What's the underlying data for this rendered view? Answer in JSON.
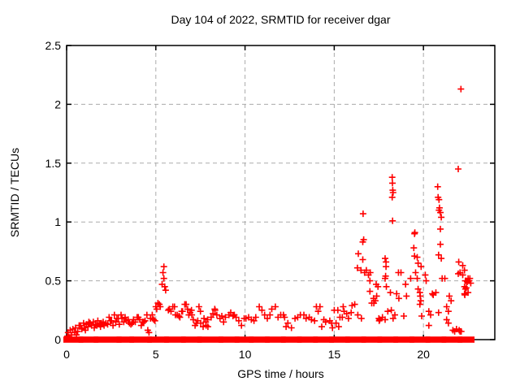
{
  "chart_data": {
    "type": "scatter",
    "title": "Day 104 of 2022, SRMTID for receiver dgar",
    "xlabel": "GPS time / hours",
    "ylabel": "SRMTID / TECUs",
    "xlim": [
      0,
      24
    ],
    "ylim": [
      0,
      2.5
    ],
    "xticks": [
      0,
      5,
      10,
      15,
      20
    ],
    "yticks": [
      0,
      0.5,
      1,
      1.5,
      2,
      2.5
    ],
    "grid": true,
    "legend_position": "none",
    "marker": "plus",
    "marker_color": "#ff0000",
    "grid_color": "#ababab",
    "frame_color": "#000000",
    "series_name": "SRMTID",
    "points": [
      [
        0.05,
        0.03
      ],
      [
        0.08,
        0.06
      ],
      [
        0.12,
        0.02
      ],
      [
        0.2,
        0.08
      ],
      [
        0.28,
        0.04
      ],
      [
        0.35,
        0.09
      ],
      [
        0.45,
        0.06
      ],
      [
        0.5,
        0.1
      ],
      [
        0.55,
        0.04
      ],
      [
        0.62,
        0.07
      ],
      [
        0.7,
        0.12
      ],
      [
        0.78,
        0.12
      ],
      [
        0.85,
        0.09
      ],
      [
        0.95,
        0.14
      ],
      [
        1.0,
        0.1
      ],
      [
        1.05,
        0.08
      ],
      [
        1.1,
        0.13
      ],
      [
        1.2,
        0.11
      ],
      [
        1.25,
        0.15
      ],
      [
        1.32,
        0.14
      ],
      [
        1.4,
        0.12
      ],
      [
        1.5,
        0.15
      ],
      [
        1.55,
        0.1
      ],
      [
        1.62,
        0.13
      ],
      [
        1.7,
        0.12
      ],
      [
        1.75,
        0.16
      ],
      [
        1.85,
        0.13
      ],
      [
        1.9,
        0.11
      ],
      [
        1.95,
        0.14
      ],
      [
        2.05,
        0.15
      ],
      [
        2.1,
        0.12
      ],
      [
        2.2,
        0.14
      ],
      [
        2.3,
        0.13
      ],
      [
        2.38,
        0.19
      ],
      [
        2.45,
        0.16
      ],
      [
        2.52,
        0.16
      ],
      [
        2.6,
        0.12
      ],
      [
        2.68,
        0.21
      ],
      [
        2.75,
        0.15
      ],
      [
        2.82,
        0.18
      ],
      [
        2.9,
        0.18
      ],
      [
        2.95,
        0.13
      ],
      [
        3.05,
        0.21
      ],
      [
        3.1,
        0.18
      ],
      [
        3.2,
        0.15
      ],
      [
        3.28,
        0.19
      ],
      [
        3.35,
        0.16
      ],
      [
        3.45,
        0.17
      ],
      [
        3.52,
        0.14
      ],
      [
        3.6,
        0.13
      ],
      [
        3.68,
        0.14
      ],
      [
        3.75,
        0.17
      ],
      [
        3.85,
        0.15
      ],
      [
        3.95,
        0.19
      ],
      [
        4.02,
        0.19
      ],
      [
        4.1,
        0.17
      ],
      [
        4.18,
        0.12
      ],
      [
        4.25,
        0.15
      ],
      [
        4.32,
        0.15
      ],
      [
        4.4,
        0.16
      ],
      [
        4.5,
        0.21
      ],
      [
        4.55,
        0.08
      ],
      [
        4.62,
        0.06
      ],
      [
        4.7,
        0.18
      ],
      [
        4.8,
        0.21
      ],
      [
        4.88,
        0.17
      ],
      [
        4.95,
        0.16
      ],
      [
        5.0,
        0.28
      ],
      [
        5.05,
        0.26
      ],
      [
        5.12,
        0.31
      ],
      [
        5.2,
        0.3
      ],
      [
        5.25,
        0.28
      ],
      [
        5.35,
        0.47
      ],
      [
        5.4,
        0.57
      ],
      [
        5.45,
        0.62
      ],
      [
        5.45,
        0.52
      ],
      [
        5.5,
        0.45
      ],
      [
        5.55,
        0.42
      ],
      [
        5.7,
        0.25
      ],
      [
        5.75,
        0.26
      ],
      [
        5.85,
        0.24
      ],
      [
        5.95,
        0.28
      ],
      [
        6.05,
        0.28
      ],
      [
        6.1,
        0.21
      ],
      [
        6.2,
        0.21
      ],
      [
        6.3,
        0.2
      ],
      [
        6.35,
        0.19
      ],
      [
        6.45,
        0.24
      ],
      [
        6.5,
        0.24
      ],
      [
        6.62,
        0.3
      ],
      [
        6.7,
        0.3
      ],
      [
        6.78,
        0.26
      ],
      [
        6.85,
        0.21
      ],
      [
        6.92,
        0.23
      ],
      [
        7.0,
        0.25
      ],
      [
        7.02,
        0.21
      ],
      [
        7.1,
        0.17
      ],
      [
        7.2,
        0.12
      ],
      [
        7.28,
        0.14
      ],
      [
        7.35,
        0.16
      ],
      [
        7.42,
        0.28
      ],
      [
        7.5,
        0.24
      ],
      [
        7.52,
        0.14
      ],
      [
        7.65,
        0.11
      ],
      [
        7.7,
        0.18
      ],
      [
        7.8,
        0.15
      ],
      [
        7.82,
        0.12
      ],
      [
        7.9,
        0.17
      ],
      [
        7.92,
        0.11
      ],
      [
        8.1,
        0.19
      ],
      [
        8.2,
        0.22
      ],
      [
        8.3,
        0.26
      ],
      [
        8.32,
        0.25
      ],
      [
        8.42,
        0.21
      ],
      [
        8.6,
        0.18
      ],
      [
        8.7,
        0.2
      ],
      [
        8.8,
        0.15
      ],
      [
        8.9,
        0.19
      ],
      [
        9.1,
        0.21
      ],
      [
        9.2,
        0.23
      ],
      [
        9.32,
        0.2
      ],
      [
        9.4,
        0.21
      ],
      [
        9.5,
        0.19
      ],
      [
        9.65,
        0.16
      ],
      [
        9.8,
        0.12
      ],
      [
        9.95,
        0.18
      ],
      [
        10.05,
        0.18
      ],
      [
        10.2,
        0.19
      ],
      [
        10.35,
        0.17
      ],
      [
        10.5,
        0.16
      ],
      [
        10.6,
        0.19
      ],
      [
        10.8,
        0.28
      ],
      [
        10.95,
        0.25
      ],
      [
        11.1,
        0.21
      ],
      [
        11.25,
        0.18
      ],
      [
        11.4,
        0.21
      ],
      [
        11.5,
        0.26
      ],
      [
        11.7,
        0.28
      ],
      [
        11.85,
        0.19
      ],
      [
        12.0,
        0.21
      ],
      [
        12.15,
        0.21
      ],
      [
        12.22,
        0.19
      ],
      [
        12.3,
        0.11
      ],
      [
        12.4,
        0.14
      ],
      [
        12.6,
        0.1
      ],
      [
        12.8,
        0.18
      ],
      [
        12.95,
        0.19
      ],
      [
        13.1,
        0.21
      ],
      [
        13.3,
        0.21
      ],
      [
        13.42,
        0.18
      ],
      [
        13.6,
        0.19
      ],
      [
        13.72,
        0.17
      ],
      [
        13.9,
        0.16
      ],
      [
        14.0,
        0.28
      ],
      [
        14.1,
        0.24
      ],
      [
        14.2,
        0.28
      ],
      [
        14.3,
        0.11
      ],
      [
        14.42,
        0.17
      ],
      [
        14.52,
        0.15
      ],
      [
        14.75,
        0.16
      ],
      [
        14.85,
        0.14
      ],
      [
        14.9,
        0.1
      ],
      [
        15.0,
        0.25
      ],
      [
        15.1,
        0.14
      ],
      [
        15.2,
        0.25
      ],
      [
        15.25,
        0.11
      ],
      [
        15.32,
        0.19
      ],
      [
        15.45,
        0.19
      ],
      [
        15.5,
        0.28
      ],
      [
        15.55,
        0.24
      ],
      [
        15.7,
        0.22
      ],
      [
        15.8,
        0.18
      ],
      [
        15.95,
        0.23
      ],
      [
        16.0,
        0.29
      ],
      [
        16.15,
        0.3
      ],
      [
        16.3,
        0.61
      ],
      [
        16.32,
        0.21
      ],
      [
        16.35,
        0.73
      ],
      [
        16.5,
        0.59
      ],
      [
        16.52,
        0.18
      ],
      [
        16.6,
        0.83
      ],
      [
        16.62,
        1.07
      ],
      [
        16.65,
        0.85
      ],
      [
        16.6,
        0.68
      ],
      [
        16.7,
        0.57
      ],
      [
        16.8,
        0.59
      ],
      [
        16.92,
        0.55
      ],
      [
        17.0,
        0.5
      ],
      [
        17.0,
        0.41
      ],
      [
        17.02,
        0.57
      ],
      [
        17.1,
        0.31
      ],
      [
        17.2,
        0.35
      ],
      [
        17.22,
        0.31
      ],
      [
        17.3,
        0.33
      ],
      [
        17.35,
        0.47
      ],
      [
        17.38,
        0.37
      ],
      [
        17.45,
        0.45
      ],
      [
        17.5,
        0.18
      ],
      [
        17.55,
        0.17
      ],
      [
        17.52,
        0.16
      ],
      [
        17.7,
        0.19
      ],
      [
        17.85,
        0.69
      ],
      [
        17.85,
        0.52
      ],
      [
        17.9,
        0.66
      ],
      [
        17.9,
        0.62
      ],
      [
        17.88,
        0.54
      ],
      [
        17.92,
        0.45
      ],
      [
        17.85,
        0.17
      ],
      [
        18.0,
        0.24
      ],
      [
        18.25,
        1.38
      ],
      [
        18.26,
        1.33
      ],
      [
        18.28,
        1.27
      ],
      [
        18.25,
        1.21
      ],
      [
        18.3,
        1.25
      ],
      [
        18.27,
        1.01
      ],
      [
        18.15,
        0.4
      ],
      [
        18.2,
        0.25
      ],
      [
        18.3,
        0.18
      ],
      [
        18.4,
        0.21
      ],
      [
        18.5,
        0.39
      ],
      [
        18.6,
        0.57
      ],
      [
        18.62,
        0.35
      ],
      [
        18.74,
        0.57
      ],
      [
        18.9,
        0.2
      ],
      [
        19.0,
        0.47
      ],
      [
        19.05,
        0.37
      ],
      [
        19.28,
        0.52
      ],
      [
        19.46,
        0.78
      ],
      [
        19.5,
        0.9
      ],
      [
        19.52,
        0.91
      ],
      [
        19.5,
        0.71
      ],
      [
        19.56,
        0.57
      ],
      [
        19.65,
        0.7
      ],
      [
        19.65,
        0.52
      ],
      [
        19.7,
        0.65
      ],
      [
        19.7,
        0.43
      ],
      [
        19.8,
        0.4
      ],
      [
        19.82,
        0.37
      ],
      [
        19.87,
        0.62
      ],
      [
        19.85,
        0.33
      ],
      [
        19.8,
        0.3
      ],
      [
        19.9,
        0.2
      ],
      [
        20.1,
        0.55
      ],
      [
        20.15,
        0.5
      ],
      [
        20.3,
        0.24
      ],
      [
        20.3,
        0.12
      ],
      [
        20.4,
        0.21
      ],
      [
        20.5,
        0.39
      ],
      [
        20.55,
        0.38
      ],
      [
        20.7,
        0.4
      ],
      [
        20.8,
        1.3
      ],
      [
        20.82,
        1.21
      ],
      [
        20.87,
        1.19
      ],
      [
        20.85,
        0.23
      ],
      [
        20.87,
        1.1
      ],
      [
        20.9,
        1.12
      ],
      [
        20.95,
        1.08
      ],
      [
        20.95,
        0.94
      ],
      [
        20.95,
        0.81
      ],
      [
        20.85,
        0.72
      ],
      [
        21.0,
        1.04
      ],
      [
        21.0,
        0.69
      ],
      [
        21.05,
        0.52
      ],
      [
        21.2,
        0.52
      ],
      [
        21.3,
        0.28
      ],
      [
        21.3,
        0.17
      ],
      [
        21.4,
        0.24
      ],
      [
        21.4,
        0.14
      ],
      [
        21.45,
        0.37
      ],
      [
        21.55,
        0.33
      ],
      [
        21.65,
        0.08
      ],
      [
        21.75,
        0.07
      ],
      [
        21.85,
        0.09
      ],
      [
        21.95,
        1.45
      ],
      [
        21.98,
        0.66
      ],
      [
        21.95,
        0.56
      ],
      [
        22.0,
        0.08
      ],
      [
        22.05,
        0.57
      ],
      [
        22.05,
        0.07
      ],
      [
        22.1,
        2.13
      ],
      [
        22.12,
        0.07
      ],
      [
        22.2,
        0.63
      ],
      [
        22.2,
        0.55
      ],
      [
        22.3,
        0.59
      ],
      [
        22.3,
        0.45
      ],
      [
        22.3,
        0.39
      ],
      [
        22.32,
        0.38
      ],
      [
        22.35,
        0.5
      ],
      [
        22.35,
        0.43
      ],
      [
        22.4,
        0.5
      ],
      [
        22.4,
        0.44
      ],
      [
        22.45,
        0.49
      ],
      [
        22.5,
        0.52
      ],
      [
        22.5,
        0.4
      ],
      [
        22.55,
        0.5
      ],
      [
        22.6,
        0.52
      ],
      [
        22.65,
        0.48
      ]
    ],
    "zero_band_segments": [
      [
        0.0,
        0.75
      ],
      [
        0.85,
        1.6
      ],
      [
        1.7,
        2.9
      ],
      [
        2.98,
        3.6
      ],
      [
        3.7,
        4.6
      ],
      [
        4.7,
        5.55
      ],
      [
        5.65,
        6.5
      ],
      [
        6.6,
        7.4
      ],
      [
        7.5,
        8.6
      ],
      [
        8.7,
        9.5
      ],
      [
        9.6,
        10.3
      ],
      [
        10.4,
        11.2
      ],
      [
        11.3,
        12.1
      ],
      [
        12.2,
        13.0
      ],
      [
        13.1,
        13.9
      ],
      [
        14.0,
        14.8
      ],
      [
        14.9,
        15.7
      ],
      [
        15.8,
        16.6
      ],
      [
        16.7,
        17.5
      ],
      [
        17.6,
        18.4
      ],
      [
        18.5,
        19.3
      ],
      [
        19.4,
        20.2
      ],
      [
        20.3,
        21.1
      ],
      [
        21.2,
        22.0
      ],
      [
        22.1,
        22.68
      ]
    ]
  }
}
